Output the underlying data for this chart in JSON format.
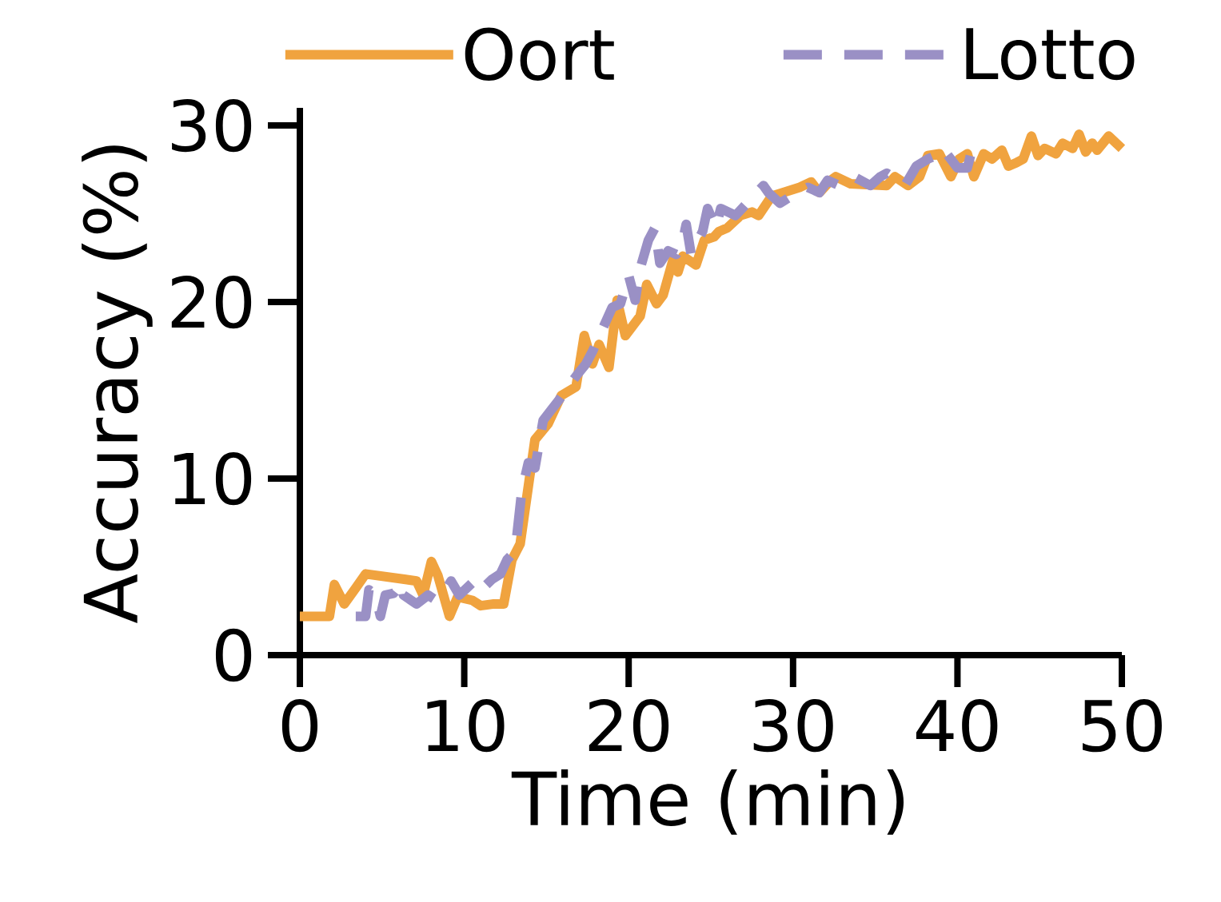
{
  "chart_data": {
    "type": "line",
    "xlabel": "Time (min)",
    "ylabel": "Accuracy (%)",
    "xlim": [
      0,
      50
    ],
    "ylim": [
      0,
      31
    ],
    "xticks": [
      0,
      10,
      20,
      30,
      40,
      50
    ],
    "yticks": [
      0,
      10,
      20,
      30
    ],
    "legend": "top",
    "series": [
      {
        "name": "Oort",
        "color": "#f0a33f",
        "line_style": "solid",
        "x": [
          0,
          1.8,
          2.1,
          2.7,
          3.4,
          4.0,
          7.1,
          7.5,
          8.0,
          8.4,
          9.1,
          9.6,
          10.5,
          11.0,
          11.8,
          12.4,
          12.9,
          13.4,
          14.3,
          15.1,
          15.9,
          16.8,
          17.3,
          17.8,
          18.2,
          18.8,
          19.3,
          19.8,
          20.7,
          21.1,
          21.7,
          22.1,
          22.7,
          23.0,
          23.3,
          24.1,
          24.6,
          25.2,
          25.5,
          26.0,
          26.8,
          27.5,
          27.9,
          28.7,
          29.4,
          30.4,
          31.1,
          31.6,
          32.3,
          32.6,
          33.5,
          35.7,
          36.2,
          37.0,
          37.7,
          38.2,
          38.9,
          39.6,
          40.1,
          40.6,
          41.0,
          41.6,
          42.1,
          42.7,
          43.1,
          43.6,
          44.0,
          44.5,
          44.9,
          45.3,
          46.0,
          46.4,
          47.0,
          47.4,
          47.8,
          48.2,
          48.5,
          49.2,
          50.0
        ],
        "values": [
          2.2,
          2.2,
          4.0,
          2.9,
          3.8,
          4.6,
          4.2,
          3.4,
          5.3,
          4.5,
          2.2,
          3.3,
          3.1,
          2.8,
          2.9,
          2.9,
          5.4,
          6.3,
          12.2,
          13.1,
          14.7,
          15.2,
          18.1,
          16.5,
          17.6,
          16.3,
          20.1,
          18.1,
          19.2,
          21.0,
          19.9,
          20.4,
          22.4,
          21.7,
          22.6,
          22.1,
          23.5,
          23.7,
          24.0,
          24.2,
          24.9,
          25.1,
          24.9,
          26.0,
          26.2,
          26.5,
          26.8,
          26.2,
          26.9,
          27.1,
          26.7,
          26.6,
          27.1,
          26.6,
          27.1,
          28.3,
          28.4,
          27.1,
          28.1,
          28.4,
          27.1,
          28.4,
          28.1,
          28.6,
          27.7,
          27.9,
          28.1,
          29.4,
          28.3,
          28.7,
          28.4,
          29.0,
          28.7,
          29.5,
          28.5,
          29.0,
          28.6,
          29.4,
          28.7
        ]
      },
      {
        "name": "Lotto",
        "color": "#9a90c5",
        "line_style": "dashed",
        "x": [
          3.4,
          4.0,
          4.2,
          4.6,
          4.9,
          5.2,
          5.7,
          6.2,
          6.3,
          7.1,
          7.8,
          8.3,
          8.8,
          9.2,
          9.7,
          10.5,
          10.9,
          11.7,
          12.2,
          12.6,
          13.1,
          13.5,
          13.9,
          14.3,
          14.8,
          15.8,
          16.8,
          17.4,
          17.8,
          19.0,
          19.5,
          20.0,
          20.4,
          20.7,
          21.2,
          21.6,
          21.9,
          22.4,
          22.9,
          23.3,
          23.5,
          23.8,
          24.5,
          24.8,
          25.3,
          25.6,
          26.5,
          27.2,
          28.2,
          28.5,
          29.2,
          29.9,
          30.9,
          31.6,
          32.1,
          32.8,
          33.7,
          34.7,
          35.3,
          35.7,
          36.5,
          36.8,
          37.5,
          38.2,
          38.7,
          39.1,
          40.0,
          40.6,
          40.9,
          41.6
        ],
        "values": [
          2.2,
          2.2,
          3.7,
          3.4,
          2.2,
          3.4,
          3.5,
          4.1,
          3.4,
          2.9,
          3.4,
          3.1,
          3.6,
          4.2,
          3.4,
          4.1,
          3.6,
          4.3,
          4.6,
          5.4,
          5.9,
          9.3,
          10.9,
          10.6,
          13.3,
          14.5,
          15.8,
          16.5,
          17.2,
          19.7,
          19.9,
          21.5,
          20.1,
          21.9,
          23.5,
          24.2,
          22.2,
          22.9,
          22.7,
          23.5,
          24.4,
          22.7,
          24.0,
          25.3,
          24.2,
          25.3,
          24.9,
          25.6,
          26.6,
          26.2,
          25.6,
          26.0,
          26.5,
          26.2,
          26.9,
          26.6,
          27.1,
          26.6,
          27.1,
          27.3,
          26.8,
          26.6,
          27.7,
          28.1,
          28.3,
          28.7,
          27.6,
          27.6,
          28.7,
          28.4
        ]
      }
    ]
  }
}
